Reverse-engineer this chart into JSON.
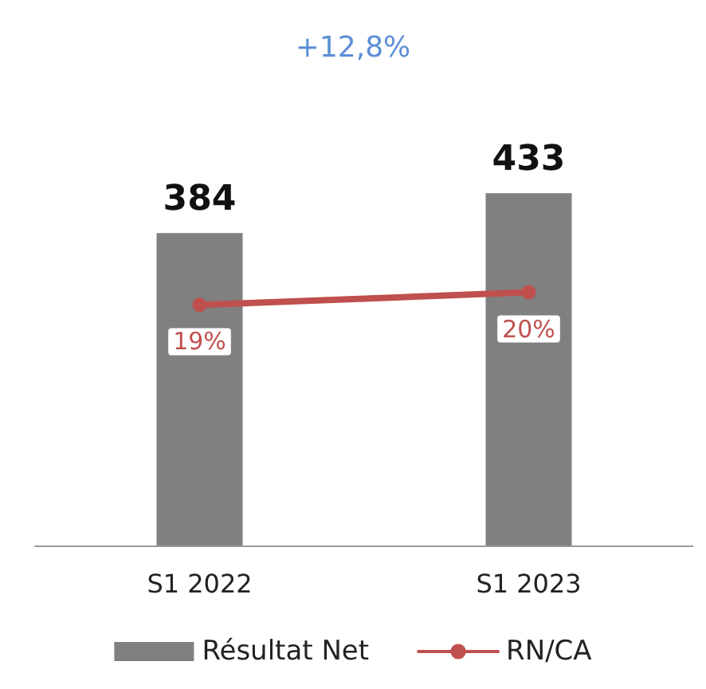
{
  "chart_data": {
    "type": "bar",
    "categories": [
      "S1 2022",
      "S1 2023"
    ],
    "series": [
      {
        "name": "Résultat Net",
        "color": "#808080",
        "values": [
          384,
          433
        ]
      },
      {
        "name": "RN/CA",
        "type": "line",
        "axis": "y2",
        "color": "#c0504d",
        "values": [
          19,
          20
        ],
        "value_labels": [
          "19%",
          "20%"
        ]
      }
    ],
    "data_labels": true,
    "annotations": [
      "+12,8%"
    ],
    "legend": "bottom",
    "grid": false,
    "tick_labels": "x",
    "marker": "circle",
    "line_style": "solid"
  }
}
